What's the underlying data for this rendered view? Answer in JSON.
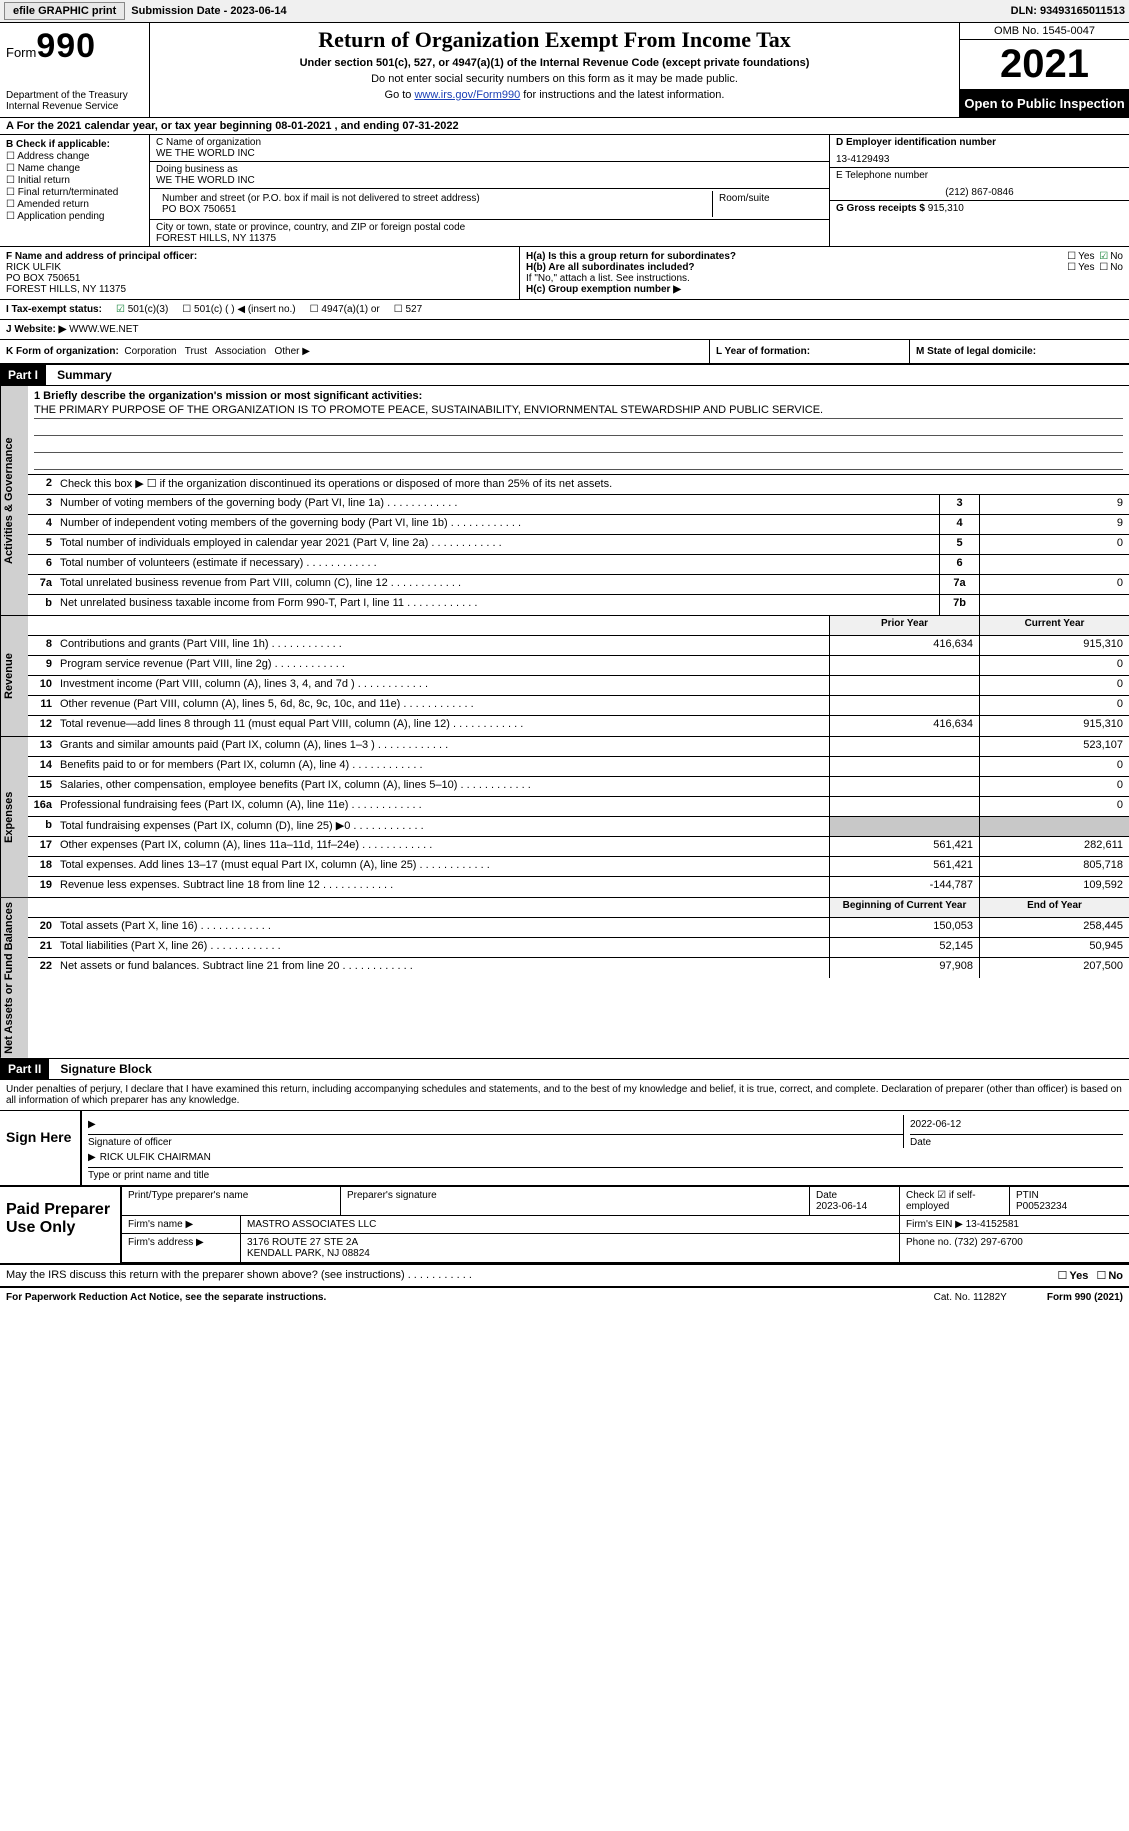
{
  "topbar": {
    "efile": "efile GRAPHIC print",
    "submission": "Submission Date - 2023-06-14",
    "dln": "DLN: 93493165011513"
  },
  "header": {
    "form_label": "Form",
    "form_no": "990",
    "dept1": "Department of the Treasury",
    "dept2": "Internal Revenue Service",
    "title": "Return of Organization Exempt From Income Tax",
    "sub": "Under section 501(c), 527, or 4947(a)(1) of the Internal Revenue Code (except private foundations)",
    "note1": "Do not enter social security numbers on this form as it may be made public.",
    "note2_pre": "Go to ",
    "note2_link": "www.irs.gov/Form990",
    "note2_post": " for instructions and the latest information.",
    "omb": "OMB No. 1545-0047",
    "year": "2021",
    "pub": "Open to Public Inspection"
  },
  "row_a": "A For the 2021 calendar year, or tax year beginning 08-01-2021    , and ending 07-31-2022",
  "col_b": {
    "hdr": "B Check if applicable:",
    "items": [
      "Address change",
      "Name change",
      "Initial return",
      "Final return/terminated",
      "Amended return",
      "Application pending"
    ]
  },
  "col_c": {
    "name_lbl": "C Name of organization",
    "name": "WE THE WORLD INC",
    "dba_lbl": "Doing business as",
    "dba": "WE THE WORLD INC",
    "addr_lbl": "Number and street (or P.O. box if mail is not delivered to street address)",
    "room_lbl": "Room/suite",
    "addr": "PO BOX 750651",
    "city_lbl": "City or town, state or province, country, and ZIP or foreign postal code",
    "city": "FOREST HILLS, NY  11375"
  },
  "col_d": {
    "ein_lbl": "D Employer identification number",
    "ein": "13-4129493",
    "tel_lbl": "E Telephone number",
    "tel": "(212) 867-0846",
    "gross_lbl": "G Gross receipts $",
    "gross": "915,310"
  },
  "officer": {
    "lbl": "F  Name and address of principal officer:",
    "name": "RICK ULFIK",
    "addr1": "PO BOX 750651",
    "addr2": "FOREST HILLS, NY  11375"
  },
  "h": {
    "ha": "H(a)  Is this a group return for subordinates?",
    "hb": "H(b)  Are all subordinates included?",
    "hb_note": "If \"No,\" attach a list. See instructions.",
    "hc": "H(c)  Group exemption number ▶",
    "yes": "Yes",
    "no": "No"
  },
  "status": {
    "lbl": "I     Tax-exempt status:",
    "o1": "501(c)(3)",
    "o2": "501(c) (  ) ◀ (insert no.)",
    "o3": "4947(a)(1) or",
    "o4": "527"
  },
  "website": {
    "lbl": "J    Website: ▶",
    "val": "  WWW.WE.NET"
  },
  "formorg": {
    "k": "K Form of organization:",
    "corp": "Corporation",
    "trust": "Trust",
    "assoc": "Association",
    "other": "Other ▶",
    "l": "L Year of formation:",
    "m": "M State of legal domicile:"
  },
  "parts": {
    "p1": "Part I",
    "p1_title": "Summary",
    "p2": "Part II",
    "p2_title": "Signature Block"
  },
  "vtabs": {
    "act": "Activities & Governance",
    "rev": "Revenue",
    "exp": "Expenses",
    "net": "Net Assets or Fund Balances"
  },
  "mission": {
    "lbl": "1   Briefly describe the organization's mission or most significant activities:",
    "text": "THE PRIMARY PURPOSE OF THE ORGANIZATION IS TO PROMOTE PEACE, SUSTAINABILITY, ENVIORNMENTAL STEWARDSHIP AND PUBLIC SERVICE."
  },
  "line2": "Check this box ▶ ☐  if the organization discontinued its operations or disposed of more than 25% of its net assets.",
  "lines_gov": [
    {
      "n": "3",
      "t": "Number of voting members of the governing body (Part VI, line 1a)",
      "box": "3",
      "v": "9"
    },
    {
      "n": "4",
      "t": "Number of independent voting members of the governing body (Part VI, line 1b)",
      "box": "4",
      "v": "9"
    },
    {
      "n": "5",
      "t": "Total number of individuals employed in calendar year 2021 (Part V, line 2a)",
      "box": "5",
      "v": "0"
    },
    {
      "n": "6",
      "t": "Total number of volunteers (estimate if necessary)",
      "box": "6",
      "v": ""
    },
    {
      "n": "7a",
      "t": "Total unrelated business revenue from Part VIII, column (C), line 12",
      "box": "7a",
      "v": "0"
    },
    {
      "n": "b",
      "t": "Net unrelated business taxable income from Form 990-T, Part I, line 11",
      "box": "7b",
      "v": ""
    }
  ],
  "hdr_prior": "Prior Year",
  "hdr_curr": "Current Year",
  "lines_rev": [
    {
      "n": "8",
      "t": "Contributions and grants (Part VIII, line 1h)",
      "p": "416,634",
      "c": "915,310"
    },
    {
      "n": "9",
      "t": "Program service revenue (Part VIII, line 2g)",
      "p": "",
      "c": "0"
    },
    {
      "n": "10",
      "t": "Investment income (Part VIII, column (A), lines 3, 4, and 7d )",
      "p": "",
      "c": "0"
    },
    {
      "n": "11",
      "t": "Other revenue (Part VIII, column (A), lines 5, 6d, 8c, 9c, 10c, and 11e)",
      "p": "",
      "c": "0"
    },
    {
      "n": "12",
      "t": "Total revenue—add lines 8 through 11 (must equal Part VIII, column (A), line 12)",
      "p": "416,634",
      "c": "915,310"
    }
  ],
  "lines_exp": [
    {
      "n": "13",
      "t": "Grants and similar amounts paid (Part IX, column (A), lines 1–3 )",
      "p": "",
      "c": "523,107"
    },
    {
      "n": "14",
      "t": "Benefits paid to or for members (Part IX, column (A), line 4)",
      "p": "",
      "c": "0"
    },
    {
      "n": "15",
      "t": "Salaries, other compensation, employee benefits (Part IX, column (A), lines 5–10)",
      "p": "",
      "c": "0"
    },
    {
      "n": "16a",
      "t": "Professional fundraising fees (Part IX, column (A), line 11e)",
      "p": "",
      "c": "0"
    },
    {
      "n": "b",
      "t": "Total fundraising expenses (Part IX, column (D), line 25) ▶0",
      "p": "grey",
      "c": "grey"
    },
    {
      "n": "17",
      "t": "Other expenses (Part IX, column (A), lines 11a–11d, 11f–24e)",
      "p": "561,421",
      "c": "282,611"
    },
    {
      "n": "18",
      "t": "Total expenses. Add lines 13–17 (must equal Part IX, column (A), line 25)",
      "p": "561,421",
      "c": "805,718"
    },
    {
      "n": "19",
      "t": "Revenue less expenses. Subtract line 18 from line 12",
      "p": "-144,787",
      "c": "109,592"
    }
  ],
  "hdr_beg": "Beginning of Current Year",
  "hdr_end": "End of Year",
  "lines_net": [
    {
      "n": "20",
      "t": "Total assets (Part X, line 16)",
      "p": "150,053",
      "c": "258,445"
    },
    {
      "n": "21",
      "t": "Total liabilities (Part X, line 26)",
      "p": "52,145",
      "c": "50,945"
    },
    {
      "n": "22",
      "t": "Net assets or fund balances. Subtract line 21 from line 20",
      "p": "97,908",
      "c": "207,500"
    }
  ],
  "sig": {
    "text": "Under penalties of perjury, I declare that I have examined this return, including accompanying schedules and statements, and to the best of my knowledge and belief, it is true, correct, and complete. Declaration of preparer (other than officer) is based on all information of which preparer has any knowledge.",
    "sign_here": "Sign Here",
    "sig_of": "Signature of officer",
    "date": "2022-06-12",
    "date_lbl": "Date",
    "name": "RICK ULFIK  CHAIRMAN",
    "name_lbl": "Type or print name and title"
  },
  "prep": {
    "lbl": "Paid Preparer Use Only",
    "r1": {
      "a": "Print/Type preparer's name",
      "b": "Preparer's signature",
      "c_lbl": "Date",
      "c": "2023-06-14",
      "d": "Check ☑ if self-employed",
      "e_lbl": "PTIN",
      "e": "P00523234"
    },
    "r2": {
      "a": "Firm's name      ▶",
      "b": "MASTRO ASSOCIATES LLC",
      "c": "Firm's EIN ▶",
      "d": "13-4152581"
    },
    "r3": {
      "a": "Firm's address ▶",
      "b": "3176 ROUTE 27 STE 2A",
      "c": "Phone no.",
      "d": "(732) 297-6700"
    },
    "r3b": "KENDALL PARK, NJ  08824"
  },
  "discuss": {
    "t": "May the IRS discuss this return with the preparer shown above? (see instructions)",
    "yes": "Yes",
    "no": "No"
  },
  "footer": {
    "left": "For Paperwork Reduction Act Notice, see the separate instructions.",
    "mid": "Cat. No. 11282Y",
    "right": "Form 990 (2021)"
  }
}
